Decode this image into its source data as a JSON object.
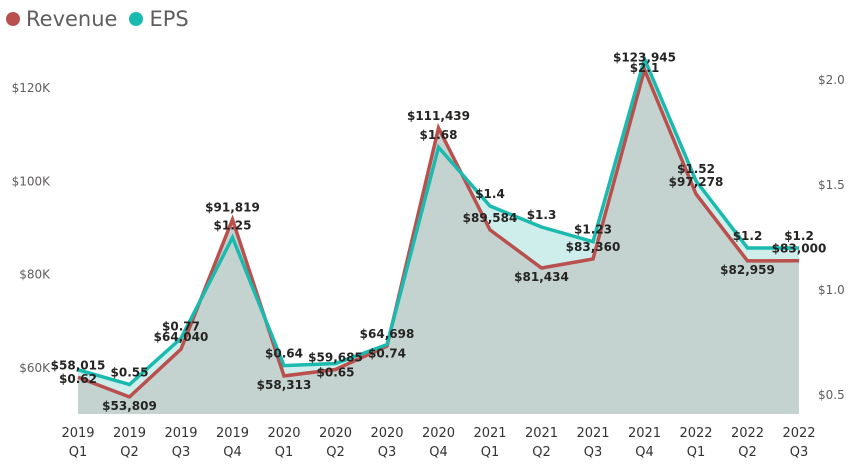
{
  "legend": {
    "revenue": {
      "label": "Revenue",
      "color": "#B9504E"
    },
    "eps": {
      "label": "EPS",
      "color": "#1ABAAE"
    }
  },
  "chart_data": {
    "type": "line",
    "categories": [
      [
        "2019",
        "Q1"
      ],
      [
        "2019",
        "Q2"
      ],
      [
        "2019",
        "Q3"
      ],
      [
        "2019",
        "Q4"
      ],
      [
        "2020",
        "Q1"
      ],
      [
        "2020",
        "Q2"
      ],
      [
        "2020",
        "Q3"
      ],
      [
        "2020",
        "Q4"
      ],
      [
        "2021",
        "Q1"
      ],
      [
        "2021",
        "Q2"
      ],
      [
        "2021",
        "Q3"
      ],
      [
        "2021",
        "Q4"
      ],
      [
        "2022",
        "Q1"
      ],
      [
        "2022",
        "Q2"
      ],
      [
        "2022",
        "Q3"
      ]
    ],
    "series": [
      {
        "name": "Revenue",
        "axis": "left",
        "color": "#B9504E",
        "values": [
          58015,
          53809,
          64040,
          91819,
          58313,
          59685,
          64698,
          111439,
          89584,
          81434,
          83360,
          123945,
          97278,
          82959,
          83000
        ],
        "labels": [
          "$58,015",
          "$53,809",
          "$64,040",
          "$91,819",
          "$58,313",
          "$59,685",
          "$64,698",
          "$111,439",
          "$89,584",
          "$81,434",
          "$83,360",
          "$123,945",
          "$97,278",
          "$82,959",
          "$83,000"
        ]
      },
      {
        "name": "EPS",
        "axis": "right",
        "color": "#1ABAAE",
        "values": [
          0.62,
          0.55,
          0.77,
          1.25,
          0.64,
          0.65,
          0.74,
          1.68,
          1.4,
          1.3,
          1.23,
          2.1,
          1.52,
          1.2,
          1.2
        ],
        "labels": [
          "$0.62",
          "$0.55",
          "$0.77",
          "$1.25",
          "$0.64",
          "$0.65",
          "$0.74",
          "$1.68",
          "$1.4",
          "$1.3",
          "$1.23",
          "$2.1",
          "$1.52",
          "$1.2",
          "$1.2"
        ]
      }
    ],
    "y_left": {
      "ticks": [
        60000,
        80000,
        100000,
        120000
      ],
      "tick_labels": [
        "$60K",
        "$80K",
        "$100K",
        "$120K"
      ]
    },
    "y_right": {
      "ticks": [
        0.5,
        1.0,
        1.5,
        2.0
      ],
      "tick_labels": [
        "$0.5",
        "$1.0",
        "$1.5",
        "$2.0"
      ]
    },
    "area_fill": "#C4D3CF",
    "area_fill_light": "#CDEEEB",
    "grid": false,
    "legend_position": "top-left"
  }
}
